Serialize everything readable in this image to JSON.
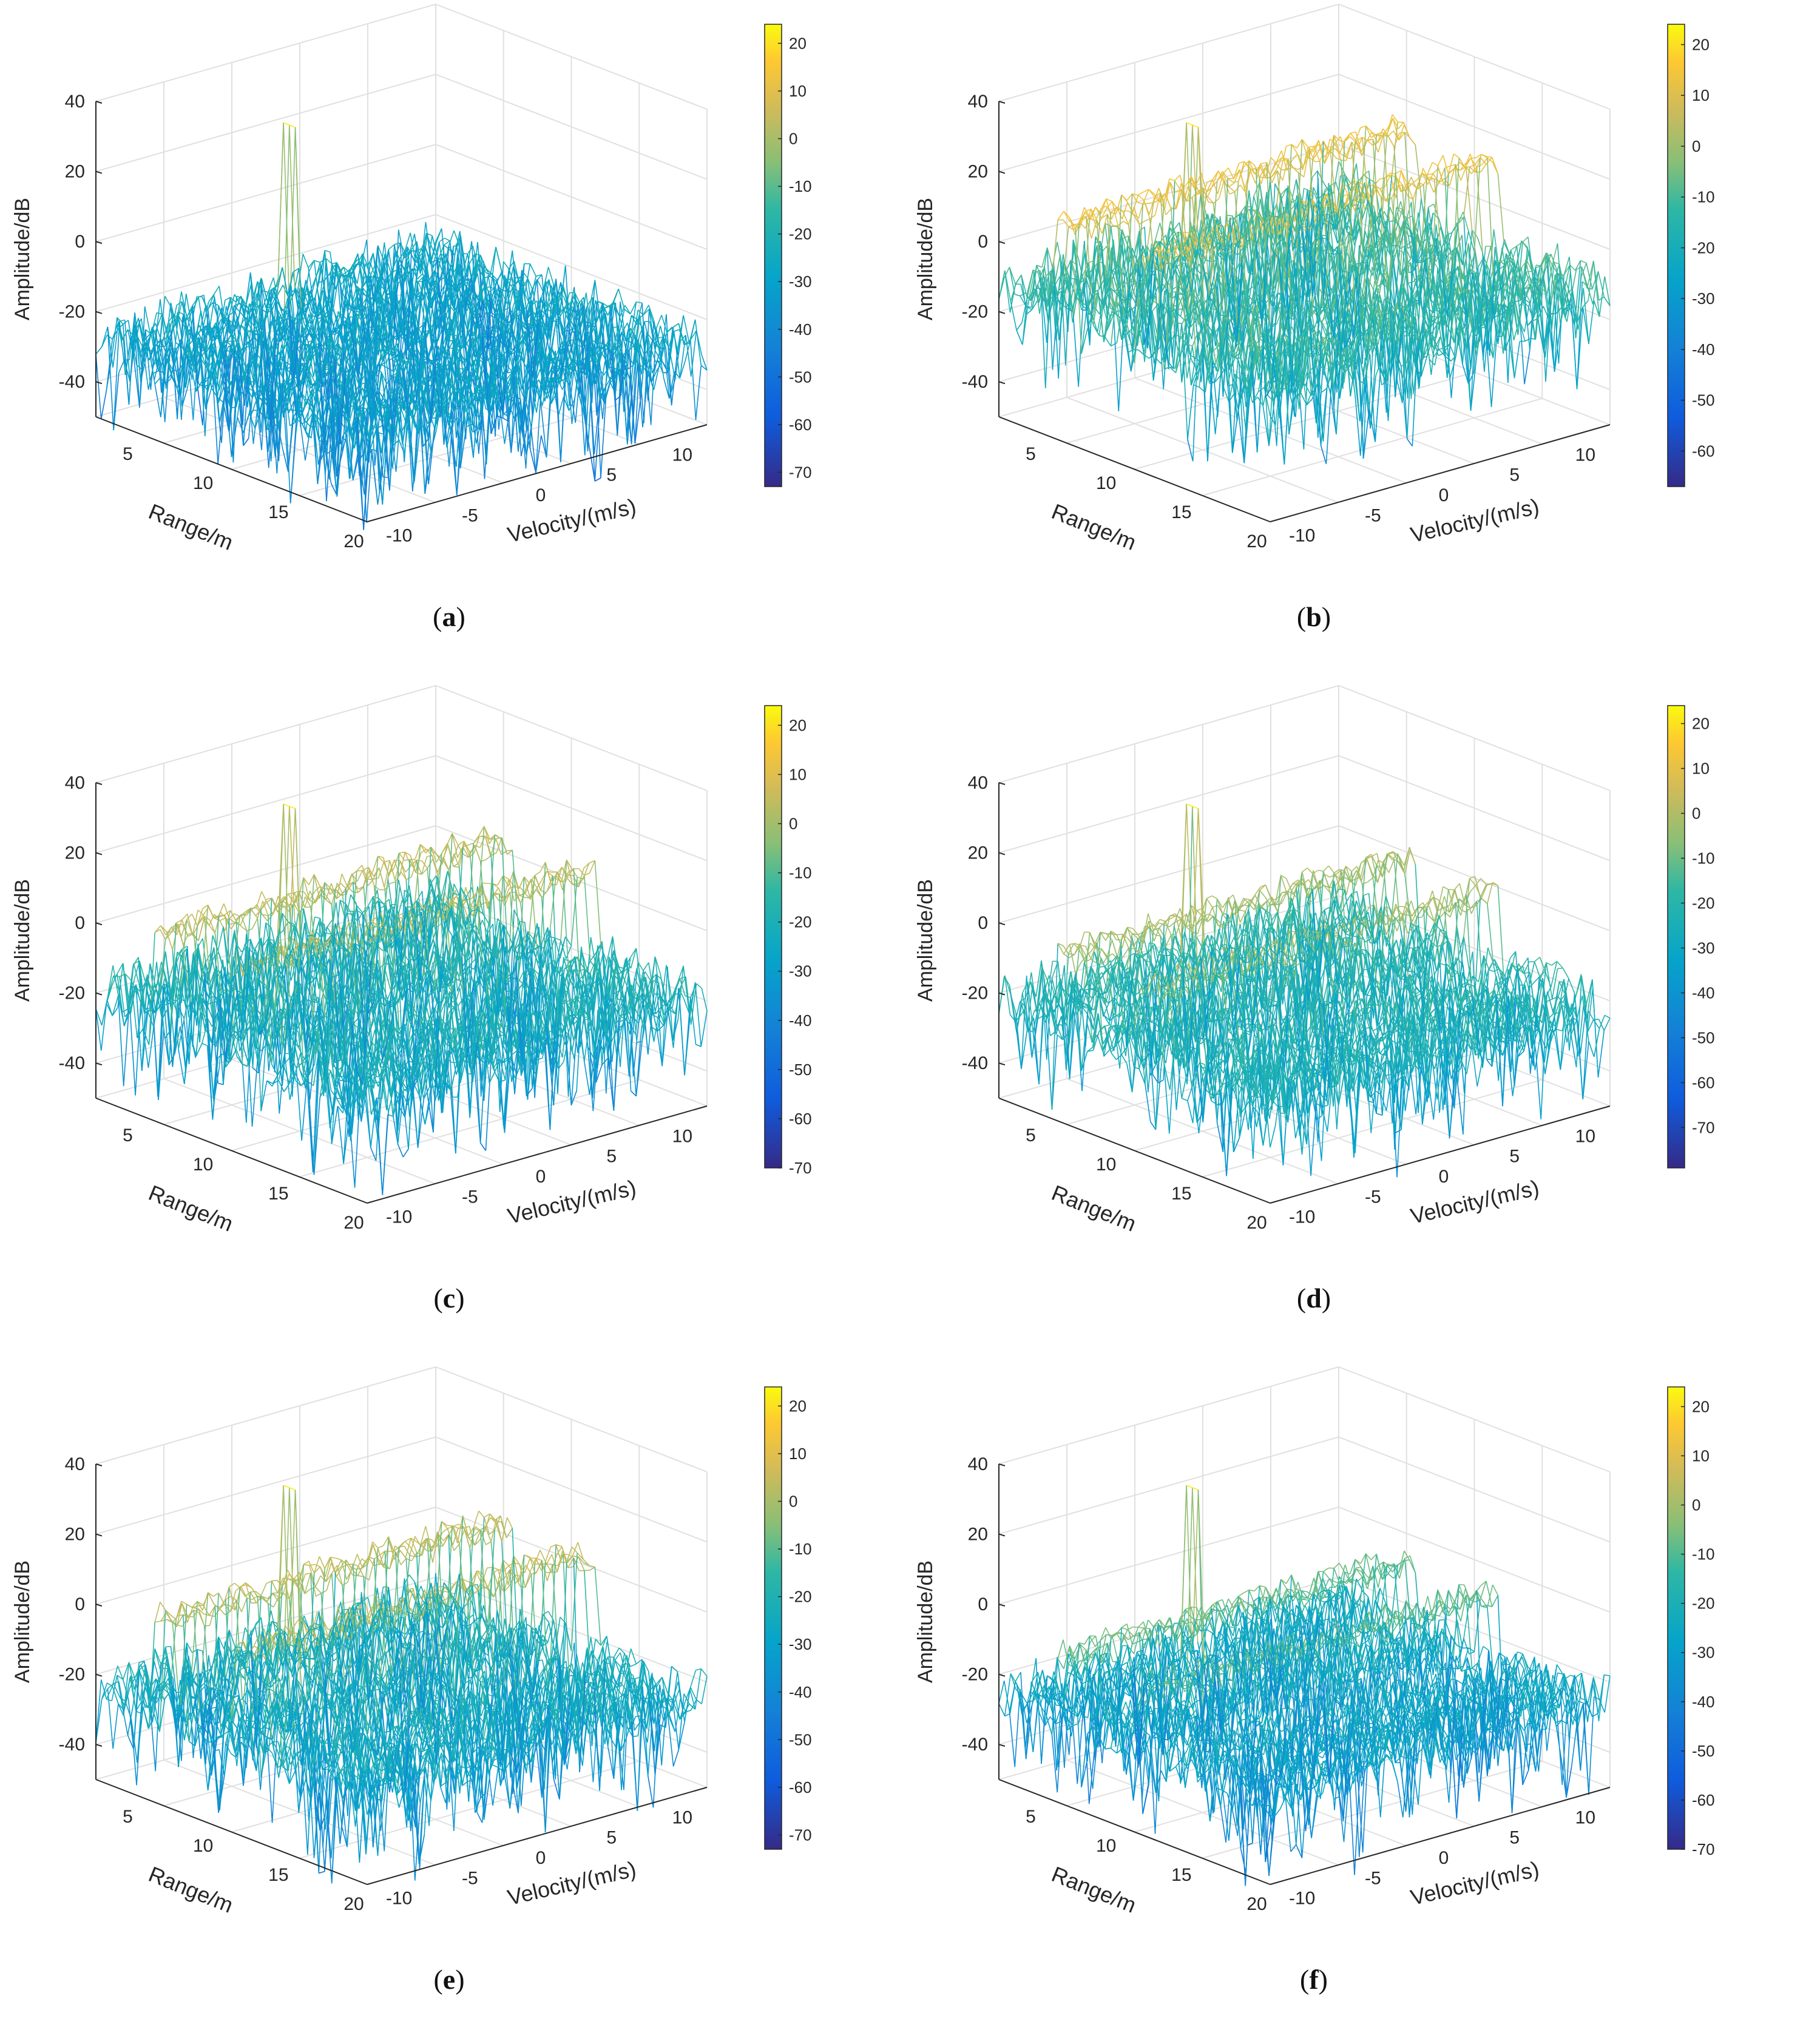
{
  "chart_data": [
    {
      "id": "a",
      "type": "surface3d",
      "caption": "a",
      "seed": 11,
      "zlabel": "Amplitude/dB",
      "xlabel": "Range/m",
      "ylabel": "Velocity/(m/s)",
      "zlim": [
        -50,
        40
      ],
      "zticks": [
        40,
        20,
        0,
        -20,
        -40
      ],
      "xticks": [
        5,
        10,
        15,
        20
      ],
      "yticks": [
        -10,
        -5,
        0,
        5,
        10
      ],
      "colorbar": {
        "min": -73,
        "max": 24,
        "ticks": [
          20,
          10,
          0,
          -10,
          -20,
          -30,
          -40,
          -50,
          -60,
          -70
        ]
      },
      "surface": {
        "floor": -28,
        "noise": 8,
        "peak": 22,
        "band_level": null,
        "bands": []
      }
    },
    {
      "id": "b",
      "type": "surface3d",
      "caption": "b",
      "seed": 23,
      "zlabel": "Amplitude/dB",
      "xlabel": "Range/m",
      "ylabel": "Velocity/(m/s)",
      "zlim": [
        -50,
        40
      ],
      "zticks": [
        40,
        20,
        0,
        -20,
        -40
      ],
      "xticks": [
        5,
        10,
        15,
        20
      ],
      "yticks": [
        -10,
        -5,
        0,
        5,
        10
      ],
      "colorbar": {
        "min": -67,
        "max": 24,
        "ticks": [
          20,
          10,
          0,
          -10,
          -20,
          -30,
          -40,
          -50,
          -60
        ]
      },
      "surface": {
        "floor": -12,
        "noise": 9,
        "peak": 22,
        "band_level": 14,
        "bands": [
          0.25,
          0.55
        ]
      }
    },
    {
      "id": "c",
      "type": "surface3d",
      "caption": "c",
      "seed": 37,
      "zlabel": "Amplitude/dB",
      "xlabel": "Range/m",
      "ylabel": "Velocity/(m/s)",
      "zlim": [
        -50,
        40
      ],
      "zticks": [
        40,
        20,
        0,
        -20,
        -40
      ],
      "xticks": [
        5,
        10,
        15,
        20
      ],
      "yticks": [
        -10,
        -5,
        0,
        5,
        10
      ],
      "colorbar": {
        "min": -70,
        "max": 24,
        "ticks": [
          20,
          10,
          0,
          -10,
          -20,
          -30,
          -40,
          -50,
          -60,
          -70
        ]
      },
      "surface": {
        "floor": -20,
        "noise": 9,
        "peak": 22,
        "band_level": 6,
        "bands": [
          0.25,
          0.55
        ]
      }
    },
    {
      "id": "d",
      "type": "surface3d",
      "caption": "d",
      "seed": 41,
      "zlabel": "Amplitude/dB",
      "xlabel": "Range/m",
      "ylabel": "Velocity/(m/s)",
      "zlim": [
        -50,
        40
      ],
      "zticks": [
        40,
        20,
        0,
        -20,
        -40
      ],
      "xticks": [
        5,
        10,
        15,
        20
      ],
      "yticks": [
        -10,
        -5,
        0,
        5,
        10
      ],
      "colorbar": {
        "min": -79,
        "max": 24,
        "ticks": [
          20,
          10,
          0,
          -10,
          -20,
          -30,
          -40,
          -50,
          -60,
          -70
        ]
      },
      "surface": {
        "floor": -22,
        "noise": 8,
        "peak": 22,
        "band_level": 0,
        "bands": [
          0.25,
          0.55
        ]
      }
    },
    {
      "id": "e",
      "type": "surface3d",
      "caption": "e",
      "seed": 53,
      "zlabel": "Amplitude/dB",
      "xlabel": "Range/m",
      "ylabel": "Velocity/(m/s)",
      "zlim": [
        -50,
        40
      ],
      "zticks": [
        40,
        20,
        0,
        -20,
        -40
      ],
      "xticks": [
        5,
        10,
        15,
        20
      ],
      "yticks": [
        -10,
        -5,
        0,
        5,
        10
      ],
      "colorbar": {
        "min": -73,
        "max": 24,
        "ticks": [
          20,
          10,
          0,
          -10,
          -20,
          -30,
          -40,
          -50,
          -60,
          -70
        ]
      },
      "surface": {
        "floor": -24,
        "noise": 8,
        "peak": 22,
        "band_level": 5,
        "bands": [
          0.25,
          0.55
        ]
      }
    },
    {
      "id": "f",
      "type": "surface3d",
      "caption": "f",
      "seed": 67,
      "zlabel": "Amplitude/dB",
      "xlabel": "Range/m",
      "ylabel": "Velocity/(m/s)",
      "zlim": [
        -50,
        40
      ],
      "zticks": [
        40,
        20,
        0,
        -20,
        -40
      ],
      "xticks": [
        5,
        10,
        15,
        20
      ],
      "yticks": [
        -10,
        -5,
        0,
        5,
        10
      ],
      "colorbar": {
        "min": -70,
        "max": 24,
        "ticks": [
          20,
          10,
          0,
          -10,
          -20,
          -30,
          -40,
          -50,
          -60,
          -70
        ]
      },
      "surface": {
        "floor": -25,
        "noise": 7,
        "peak": 22,
        "band_level": -6,
        "bands": [
          0.25,
          0.55
        ]
      }
    }
  ]
}
